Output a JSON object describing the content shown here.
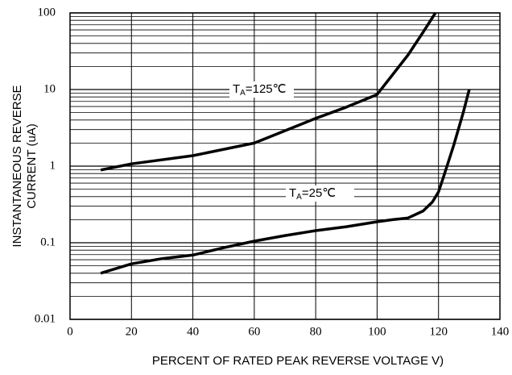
{
  "chart_data": {
    "type": "line",
    "x_label": "PERCENT OF RATED PEAK REVERSE VOLTAGE V)",
    "y_label": [
      "INSTANTANEOUS REVERSE",
      "CURRENT (uA)"
    ],
    "xlim": [
      0,
      140
    ],
    "xticks": [
      0,
      20,
      40,
      60,
      80,
      100,
      120,
      140
    ],
    "ylim": [
      0.01,
      100
    ],
    "yticks": [
      0.01,
      0.1,
      1,
      10,
      100
    ],
    "log_y": true,
    "grid": true,
    "series": [
      {
        "name_parts": [
          "T",
          "A",
          "=125℃"
        ],
        "color": "#000000",
        "x": [
          10,
          20,
          40,
          60,
          80,
          90,
          100,
          110,
          115,
          119
        ],
        "values": [
          0.89,
          1.07,
          1.37,
          2.0,
          4.2,
          5.9,
          8.6,
          28,
          56,
          100
        ]
      },
      {
        "name_parts": [
          "T",
          "A",
          "=25℃"
        ],
        "color": "#000000",
        "x": [
          10,
          20,
          30,
          40,
          50,
          60,
          70,
          80,
          90,
          100,
          105,
          110,
          115,
          118,
          120,
          122,
          125,
          128,
          130
        ],
        "values": [
          0.04,
          0.053,
          0.062,
          0.069,
          0.086,
          0.105,
          0.124,
          0.144,
          0.162,
          0.188,
          0.2,
          0.21,
          0.26,
          0.34,
          0.46,
          0.8,
          1.9,
          4.9,
          10
        ]
      }
    ]
  }
}
